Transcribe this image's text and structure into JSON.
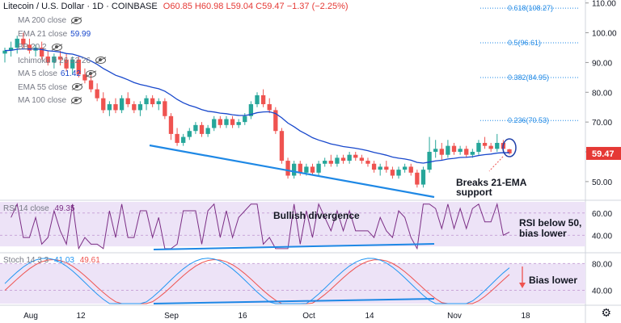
{
  "header": {
    "symbol": "Litecoin / U.S. Dollar · 1D · COINBASE",
    "ohlc": "O60.85 H60.98 L59.04 C59.47 −1.37 (−2.25%)"
  },
  "indicators": [
    {
      "name": "MA 200 close",
      "value": "",
      "color": "#787b86",
      "eye": true
    },
    {
      "name": "EMA 21 close",
      "value": "59.99",
      "color": "#1848cc",
      "eye": false
    },
    {
      "name": "BB 20 2",
      "value": "",
      "color": "#787b86",
      "eye": true
    },
    {
      "name": "Ichimoku 9 26 52 26",
      "value": "",
      "color": "#787b86",
      "eye": true
    },
    {
      "name": "MA 5 close",
      "value": "61.42",
      "color": "#1848cc",
      "eye": true
    },
    {
      "name": "EMA 55 close",
      "value": "",
      "color": "#787b86",
      "eye": true
    },
    {
      "name": "MA 100 close",
      "value": "",
      "color": "#787b86",
      "eye": true
    }
  ],
  "rsi_header": {
    "name": "RSI 14 close",
    "value": "49.35"
  },
  "stoch_header": {
    "name": "Stoch 14 3 3",
    "k": "41.03",
    "d": "49.61"
  },
  "annotations": {
    "ema_support": "Breaks 21-EMA\nsupport",
    "bullish_div": "Bullish divergence",
    "rsi_note": "RSI below 50,\nbias lower",
    "stoch_note": "Bias lower"
  },
  "price_badge": "59.47",
  "colors": {
    "up": "#26a69a",
    "down": "#ef5350",
    "ema": "#1848cc",
    "trend": "#1e88e5",
    "rsi_bg": "#ede3f7",
    "rsi_line": "#7b2e85",
    "stoch_k": "#2196f3",
    "stoch_d": "#ef5350",
    "badge": "#e53935",
    "fib": "#1e88e5"
  },
  "chart_data": {
    "type": "candlestick",
    "title": "Litecoin / U.S. Dollar · 1D · COINBASE",
    "price_axis": {
      "ylim": [
        44,
        111
      ],
      "ticks": [
        50,
        60,
        70,
        80,
        90,
        100,
        110
      ]
    },
    "x_ticks": [
      "Aug",
      "12",
      "Sep",
      "16",
      "Oct",
      "14",
      "Nov",
      "18"
    ],
    "fib_levels": [
      {
        "label": "0.618(108.27)",
        "value": 108.27
      },
      {
        "label": "0.5(96.61)",
        "value": 96.61
      },
      {
        "label": "0.382(84.95)",
        "value": 84.95
      },
      {
        "label": "0.236(70.53)",
        "value": 70.53
      }
    ],
    "candles": [
      [
        93,
        95,
        90,
        94
      ],
      [
        94,
        97,
        92,
        95
      ],
      [
        95,
        99,
        93,
        98
      ],
      [
        98,
        100,
        95,
        96
      ],
      [
        96,
        98,
        93,
        94
      ],
      [
        94,
        96,
        92,
        95
      ],
      [
        95,
        97,
        91,
        92
      ],
      [
        92,
        94,
        89,
        90
      ],
      [
        90,
        93,
        88,
        92
      ],
      [
        92,
        94,
        89,
        91
      ],
      [
        91,
        93,
        87,
        88
      ],
      [
        88,
        92,
        86,
        91
      ],
      [
        91,
        92,
        85,
        86
      ],
      [
        86,
        88,
        83,
        84
      ],
      [
        84,
        86,
        80,
        81
      ],
      [
        81,
        83,
        77,
        78
      ],
      [
        78,
        80,
        73,
        74
      ],
      [
        74,
        77,
        72,
        76
      ],
      [
        76,
        78,
        73,
        74
      ],
      [
        74,
        79,
        73,
        78
      ],
      [
        78,
        80,
        75,
        76
      ],
      [
        76,
        77,
        73,
        74
      ],
      [
        74,
        77,
        72,
        76
      ],
      [
        76,
        79,
        74,
        78
      ],
      [
        78,
        79,
        75,
        76
      ],
      [
        76,
        78,
        74,
        77
      ],
      [
        77,
        78,
        71,
        72
      ],
      [
        72,
        73,
        64,
        66
      ],
      [
        66,
        68,
        62,
        63
      ],
      [
        63,
        66,
        62,
        65
      ],
      [
        65,
        68,
        64,
        67
      ],
      [
        67,
        70,
        66,
        69
      ],
      [
        69,
        70,
        65,
        66
      ],
      [
        66,
        69,
        65,
        68
      ],
      [
        68,
        72,
        67,
        71
      ],
      [
        71,
        72,
        68,
        69
      ],
      [
        69,
        72,
        68,
        71
      ],
      [
        71,
        72,
        68,
        69
      ],
      [
        69,
        71,
        68,
        70
      ],
      [
        70,
        73,
        69,
        72
      ],
      [
        72,
        77,
        71,
        76
      ],
      [
        76,
        80,
        75,
        79
      ],
      [
        79,
        81,
        75,
        76
      ],
      [
        76,
        78,
        73,
        74
      ],
      [
        74,
        75,
        66,
        67
      ],
      [
        67,
        68,
        56,
        57
      ],
      [
        57,
        58,
        51,
        52
      ],
      [
        52,
        57,
        51,
        56
      ],
      [
        56,
        57,
        52,
        53
      ],
      [
        53,
        56,
        52,
        55
      ],
      [
        55,
        56,
        52,
        53
      ],
      [
        53,
        57,
        52,
        56
      ],
      [
        56,
        58,
        55,
        57
      ],
      [
        57,
        59,
        55,
        56
      ],
      [
        56,
        59,
        55,
        58
      ],
      [
        58,
        59,
        56,
        57
      ],
      [
        57,
        60,
        56,
        59
      ],
      [
        59,
        60,
        57,
        58
      ],
      [
        58,
        59,
        56,
        57
      ],
      [
        57,
        58,
        55,
        56
      ],
      [
        56,
        57,
        53,
        54
      ],
      [
        54,
        56,
        52,
        55
      ],
      [
        55,
        57,
        53,
        54
      ],
      [
        54,
        55,
        51,
        52
      ],
      [
        52,
        55,
        51,
        54
      ],
      [
        54,
        56,
        53,
        55
      ],
      [
        55,
        56,
        52,
        53
      ],
      [
        53,
        54,
        48,
        49
      ],
      [
        49,
        55,
        48,
        54
      ],
      [
        54,
        65,
        53,
        60
      ],
      [
        60,
        64,
        58,
        61
      ],
      [
        61,
        63,
        57,
        59
      ],
      [
        59,
        64,
        58,
        62
      ],
      [
        62,
        63,
        59,
        60
      ],
      [
        60,
        62,
        59,
        61
      ],
      [
        61,
        62,
        58,
        59
      ],
      [
        59,
        61,
        58,
        60
      ],
      [
        60,
        64,
        59,
        63
      ],
      [
        63,
        65,
        61,
        62
      ],
      [
        62,
        63,
        60,
        61
      ],
      [
        61,
        66,
        60,
        63
      ],
      [
        63,
        64,
        60,
        61
      ],
      [
        60.85,
        60.98,
        59.04,
        59.47
      ]
    ],
    "rsi": {
      "ylim": [
        25,
        70
      ],
      "ticks": [
        40,
        60
      ],
      "value": 49.35
    },
    "stoch": {
      "ylim": [
        20,
        95
      ],
      "ticks": [
        40,
        80
      ],
      "k": 41.03,
      "d": 49.61
    }
  }
}
